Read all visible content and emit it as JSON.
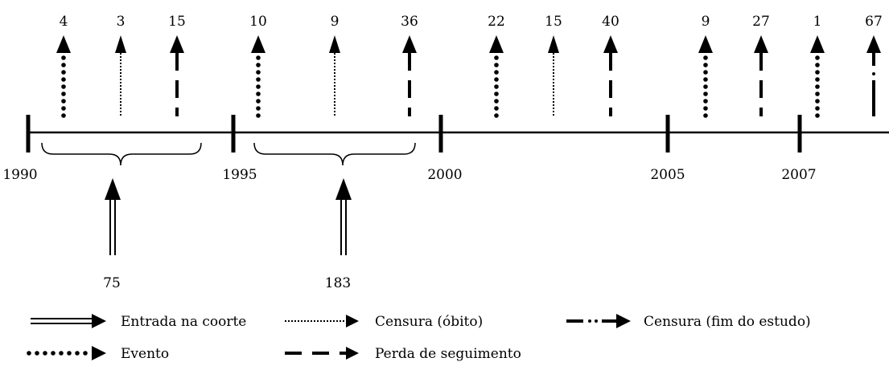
{
  "timeline": {
    "years": [
      {
        "id": "y1990",
        "label": "1990"
      },
      {
        "id": "y1995",
        "label": "1995"
      },
      {
        "id": "y2000",
        "label": "2000"
      },
      {
        "id": "y2005",
        "label": "2005"
      },
      {
        "id": "y2007",
        "label": "2007"
      }
    ]
  },
  "top_arrows": [
    {
      "value": "4",
      "style": "evento"
    },
    {
      "value": "3",
      "style": "censura-obito"
    },
    {
      "value": "15",
      "style": "perda"
    },
    {
      "value": "10",
      "style": "evento"
    },
    {
      "value": "9",
      "style": "censura-obito"
    },
    {
      "value": "36",
      "style": "perda"
    },
    {
      "value": "22",
      "style": "evento"
    },
    {
      "value": "15",
      "style": "censura-obito"
    },
    {
      "value": "40",
      "style": "perda"
    },
    {
      "value": "9",
      "style": "evento"
    },
    {
      "value": "27",
      "style": "perda"
    },
    {
      "value": "1",
      "style": "evento"
    },
    {
      "value": "67",
      "style": "censura-fim"
    }
  ],
  "entries": [
    {
      "value": "75"
    },
    {
      "value": "183"
    }
  ],
  "legend": [
    {
      "id": "entrada",
      "label": "Entrada na coorte"
    },
    {
      "id": "censura-obito",
      "label": "Censura (óbito)"
    },
    {
      "id": "censura-fim",
      "label": "Censura (fim do estudo)"
    },
    {
      "id": "evento",
      "label": "Evento"
    },
    {
      "id": "perda",
      "label": "Perda de seguimento"
    }
  ],
  "colors": {
    "ink": "#000000",
    "background": "#ffffff"
  }
}
